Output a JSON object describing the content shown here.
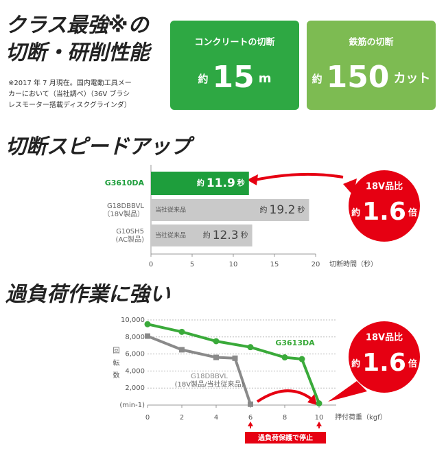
{
  "heading": [
    "クラス最強※の",
    "切断・研削性能"
  ],
  "footnote": [
    "※2017 年 7 月現在。国内電動工具メー",
    "カーにおいて（当社調べ）（36V ブラシ",
    "レスモーター搭載ディスクグラインダ）"
  ],
  "stats": [
    {
      "label": "コンクリートの切断",
      "prefix": "約",
      "value": 15,
      "unit": "m",
      "color": "#2ea843"
    },
    {
      "label": "鉄筋の切断",
      "prefix": "約",
      "value": 150,
      "unit": "カット",
      "color": "#7dbb52"
    }
  ],
  "chart_data": [
    {
      "type": "bar",
      "title": "切断スピードアップ",
      "categories": [
        [
          "G3610DA"
        ],
        [
          "G18DBBVL",
          "（18V製品）"
        ],
        [
          "G10SH5",
          "(AC製品)"
        ]
      ],
      "values": [
        11.9,
        19.2,
        12.3
      ],
      "value_prefix": "約",
      "value_suffix": "秒",
      "bar_tags": [
        null,
        "当社従来品",
        "当社従来品"
      ],
      "colors": [
        "#1e9e3c",
        "#c9c9c9",
        "#c9c9c9"
      ],
      "xlim": [
        0,
        20
      ],
      "xticks": [
        0,
        5,
        10,
        15,
        20
      ],
      "xlabel": "切断時間（秒）",
      "grid": false,
      "callout": {
        "text": "18V品比",
        "prefix": "約",
        "value": 1.6,
        "suffix": "倍"
      }
    },
    {
      "type": "line",
      "title": "過負荷作業に強い",
      "series": [
        {
          "name": "G3613DA",
          "color": "#3aaa3a",
          "marker": "circle",
          "x": [
            0,
            2,
            4,
            6,
            8,
            9,
            10
          ],
          "values": [
            9500,
            8600,
            7500,
            6800,
            5600,
            5400,
            200
          ]
        },
        {
          "name": "G18DBBVL",
          "note": "(18V製品/当社従来品)",
          "color": "#8a8a8a",
          "marker": "square",
          "x": [
            0,
            2,
            4,
            5.1,
            6
          ],
          "values": [
            8100,
            6500,
            5600,
            5500,
            100
          ]
        }
      ],
      "xlim": [
        0,
        10
      ],
      "xticks": [
        0,
        2,
        4,
        6,
        8,
        10
      ],
      "xlabel": "押付荷重（kgf）",
      "ylim": [
        0,
        10000
      ],
      "yticks": [
        {
          "value": 2000,
          "label": "2,000"
        },
        {
          "value": 4000,
          "label": "4,000"
        },
        {
          "value": 6000,
          "label": "6,000"
        },
        {
          "value": 8000,
          "label": "8,000"
        },
        {
          "value": 10000,
          "label": "10,000"
        }
      ],
      "ylabel": "回転数",
      "yunit": "(min-1)",
      "grid": true,
      "annotation": "過負荷保護で停止",
      "callout": {
        "text": "18V品比",
        "prefix": "約",
        "value": 1.6,
        "suffix": "倍"
      }
    }
  ]
}
